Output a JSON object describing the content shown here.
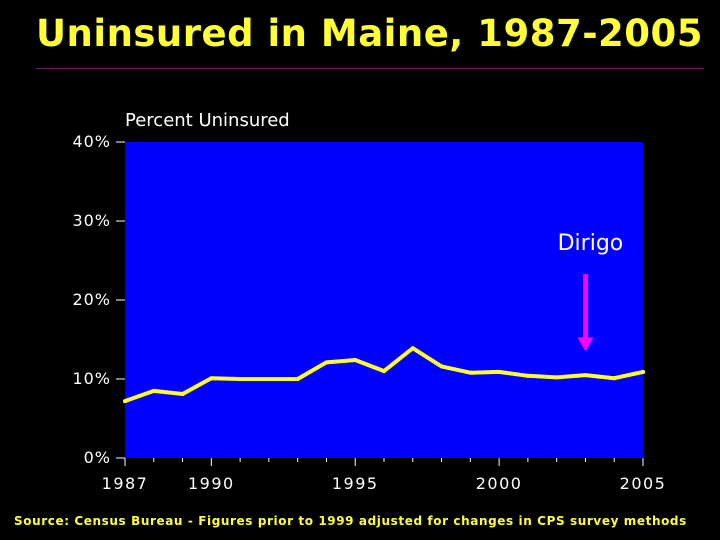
{
  "header": {
    "title": "Uninsured in Maine, 1987-2005"
  },
  "colors": {
    "background": "#000000",
    "title_text": "#ffff33",
    "plot_area": "#0000ff",
    "series_line": "#ffff33",
    "annotation_arrow": "#ff00ff",
    "axis_text": "#ffffff",
    "source_text": "#ffff33"
  },
  "chart_data": {
    "type": "line",
    "ylabel": "Percent Uninsured",
    "xlabel": "",
    "ylim": [
      0,
      40
    ],
    "xlim": [
      1987,
      2005
    ],
    "y_ticks": [
      "0%",
      "10%",
      "20%",
      "30%",
      "40%"
    ],
    "y_tick_values": [
      0,
      10,
      20,
      30,
      40
    ],
    "x_ticks": [
      "1987",
      "1990",
      "1995",
      "2000",
      "2005"
    ],
    "x_tick_values": [
      1987,
      1990,
      1995,
      2000,
      2005
    ],
    "grid": false,
    "series": [
      {
        "x": [
          1987,
          1988,
          1989,
          1990,
          1991,
          1992,
          1993,
          1994,
          1995,
          1996,
          1997,
          1998,
          1999,
          2000,
          2001,
          2002,
          2003,
          2004,
          2005
        ],
        "y": [
          7.2,
          8.5,
          8.1,
          10.1,
          10.0,
          10.0,
          10.0,
          12.1,
          12.4,
          11.0,
          13.9,
          11.6,
          10.8,
          10.9,
          10.4,
          10.2,
          10.5,
          10.1,
          10.9
        ]
      }
    ],
    "annotations": [
      {
        "text": "Dirigo",
        "x": 2003,
        "y": 13.5,
        "arrow": "down"
      }
    ]
  },
  "footer": {
    "source": "Source: Census Bureau - Figures prior to 1999 adjusted for changes in CPS survey methods"
  }
}
